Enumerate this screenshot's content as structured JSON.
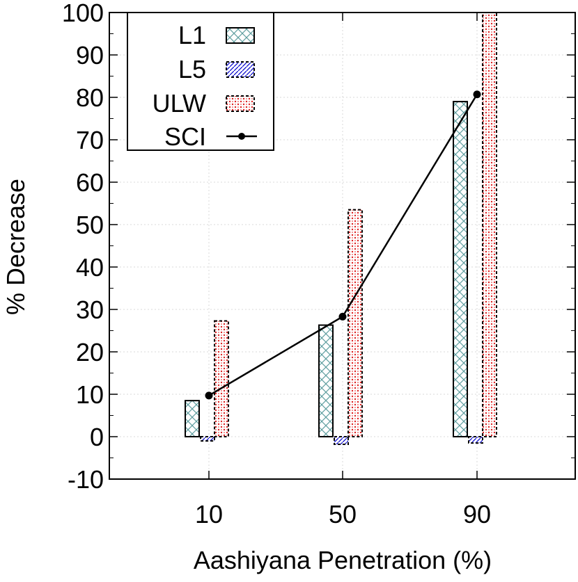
{
  "chart_data": {
    "type": "bar",
    "xlabel": "Aashiyana Penetration (%)",
    "ylabel": "% Decrease",
    "categories": [
      "10",
      "50",
      "90"
    ],
    "ylim": [
      -10,
      100
    ],
    "yticks": [
      -10,
      0,
      10,
      20,
      30,
      40,
      50,
      60,
      70,
      80,
      90,
      100
    ],
    "grid": true,
    "legend_position": "top-left",
    "series": [
      {
        "name": "L1",
        "kind": "bar",
        "pattern": "crosshatch",
        "color": "#5f9ea0",
        "values": [
          8.5,
          26.3,
          79.0
        ]
      },
      {
        "name": "L5",
        "kind": "bar",
        "pattern": "diagonal-dashed",
        "color": "#0000cc",
        "values": [
          -1.0,
          -1.8,
          -1.5
        ]
      },
      {
        "name": "ULW",
        "kind": "bar",
        "pattern": "dotted",
        "color": "#e02020",
        "values": [
          27.3,
          53.5,
          100.0
        ]
      },
      {
        "name": "SCI",
        "kind": "line",
        "color": "#000000",
        "values": [
          9.7,
          28.3,
          80.7
        ]
      }
    ]
  }
}
